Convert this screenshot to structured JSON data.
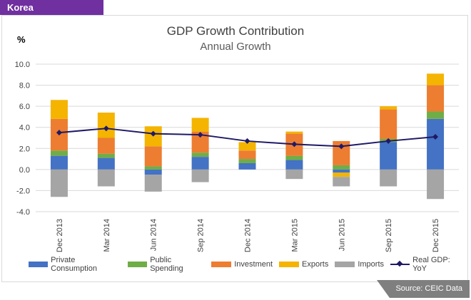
{
  "header": {
    "country_tag": "Korea"
  },
  "footer": {
    "source": "Source: CEIC Data"
  },
  "chart_data": {
    "type": "bar",
    "stacked": true,
    "title": "GDP Growth Contribution",
    "subtitle": "Annual Growth",
    "ylabel": "%",
    "ylim": [
      -4.0,
      10.0
    ],
    "yticks": [
      "-4.0",
      "-2.0",
      "0.0",
      "2.0",
      "4.0",
      "6.0",
      "8.0",
      "10.0"
    ],
    "grid": true,
    "legend_position": "bottom",
    "categories": [
      "Dec 2013",
      "Mar 2014",
      "Jun 2014",
      "Sep 2014",
      "Dec 2014",
      "Mar 2015",
      "Jun 2015",
      "Sep 2015",
      "Dec 2015"
    ],
    "series": [
      {
        "name": "Private Consumption",
        "color": "#4472c4",
        "values": [
          1.3,
          1.1,
          -0.5,
          1.2,
          0.6,
          0.9,
          -0.3,
          2.6,
          4.8
        ]
      },
      {
        "name": "Public Spending",
        "color": "#70ad47",
        "values": [
          0.5,
          0.4,
          0.3,
          0.4,
          0.4,
          0.4,
          0.4,
          0.3,
          0.7
        ]
      },
      {
        "name": "Investment",
        "color": "#ed7d31",
        "values": [
          3.0,
          1.5,
          1.9,
          2.0,
          0.8,
          2.1,
          2.3,
          2.8,
          2.5
        ]
      },
      {
        "name": "Exports",
        "color": "#f4b400",
        "values": [
          1.8,
          2.4,
          1.9,
          1.3,
          0.8,
          0.2,
          -0.4,
          0.3,
          1.1
        ]
      },
      {
        "name": "Imports",
        "color": "#a5a5a5",
        "values": [
          -2.6,
          -1.6,
          -1.6,
          -1.2,
          0.0,
          -0.9,
          -0.9,
          -1.6,
          -2.8
        ]
      }
    ],
    "line_series": {
      "name": "Real GDP: YoY",
      "color": "#1f1a66",
      "values": [
        3.5,
        3.9,
        3.4,
        3.3,
        2.7,
        2.4,
        2.2,
        2.7,
        3.1
      ]
    }
  }
}
